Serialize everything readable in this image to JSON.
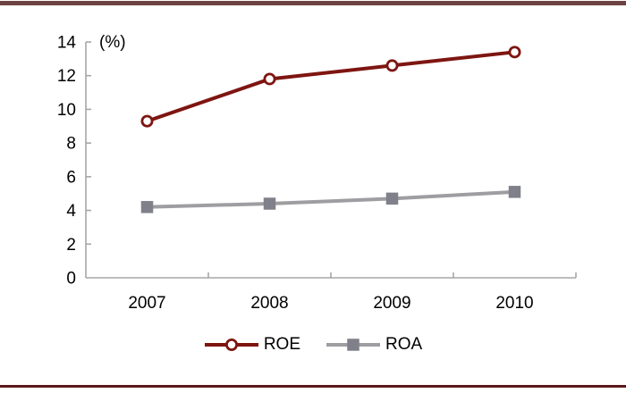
{
  "page": {
    "background": "#ffffff"
  },
  "top_bar": {
    "color": "#6d4241"
  },
  "bottom_bar": {
    "color": "#5c181a"
  },
  "chart_data": {
    "type": "line",
    "title": "",
    "xlabel": "",
    "ylabel": "(%)",
    "categories": [
      "2007",
      "2008",
      "2009",
      "2010"
    ],
    "series": [
      {
        "name": "ROE",
        "values": [
          9.3,
          11.8,
          12.6,
          13.4
        ],
        "color": "#7e1511",
        "marker": "circle-open",
        "marker_fill": "#ffffff"
      },
      {
        "name": "ROA",
        "values": [
          4.2,
          4.4,
          4.7,
          5.1
        ],
        "color": "#9e9ea2",
        "marker": "square",
        "marker_color": "#80808a"
      }
    ],
    "ylim": [
      0,
      14
    ],
    "yticks": [
      0,
      2,
      4,
      6,
      8,
      10,
      12,
      14
    ],
    "ytick_labels": [
      "0",
      "2",
      "4",
      "6",
      "8",
      "10",
      "12",
      "14"
    ],
    "grid": false,
    "legend_position": "bottom",
    "axis_color": "#a6a6a6",
    "tick_direction": "in",
    "text_color": "#000000"
  }
}
